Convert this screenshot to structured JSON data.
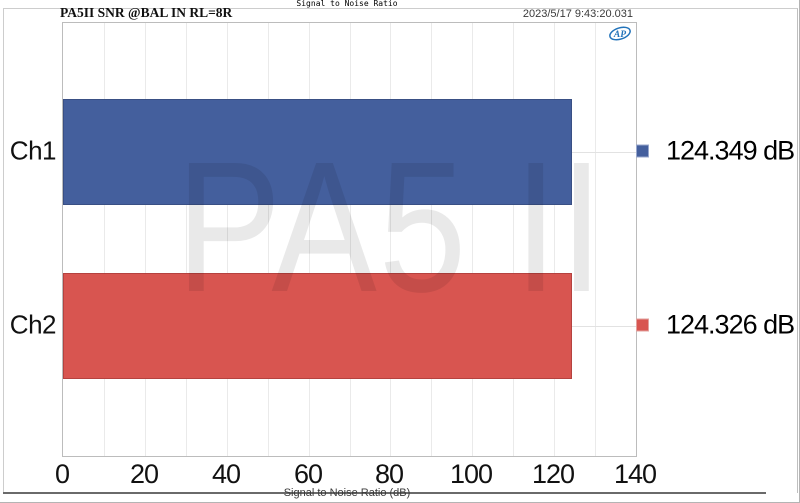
{
  "window": {
    "title": "Signal to Noise Ratio"
  },
  "header": {
    "measurement_label": "PA5II SNR @BAL IN RL=8R",
    "timestamp": "2023/5/17 9:43:20.031",
    "logo_icon": "ap-logo",
    "logo_color": "#2273BA"
  },
  "watermark": "PA5 II",
  "chart_data": {
    "type": "bar",
    "orientation": "horizontal",
    "title": "Signal to Noise Ratio",
    "xlabel": "Signal to Noise Ratio (dB)",
    "unit": "dB",
    "xlim": [
      0,
      140
    ],
    "x_major_ticks": [
      0,
      20,
      40,
      60,
      80,
      100,
      120,
      140
    ],
    "x_minor_grid_step": 10,
    "grid": true,
    "categories": [
      "Ch1",
      "Ch2"
    ],
    "values": [
      124.349,
      124.326
    ],
    "value_labels": [
      "124.349 dB",
      "124.326 dB"
    ],
    "bar_colors": [
      "#445F9D",
      "#D85550"
    ],
    "bar_border_colors": [
      "#394F84",
      "#B5423F"
    ],
    "legend_marker_border_colors": [
      "#98A7CC",
      "#E2A19E"
    ],
    "legend_position": "right"
  }
}
